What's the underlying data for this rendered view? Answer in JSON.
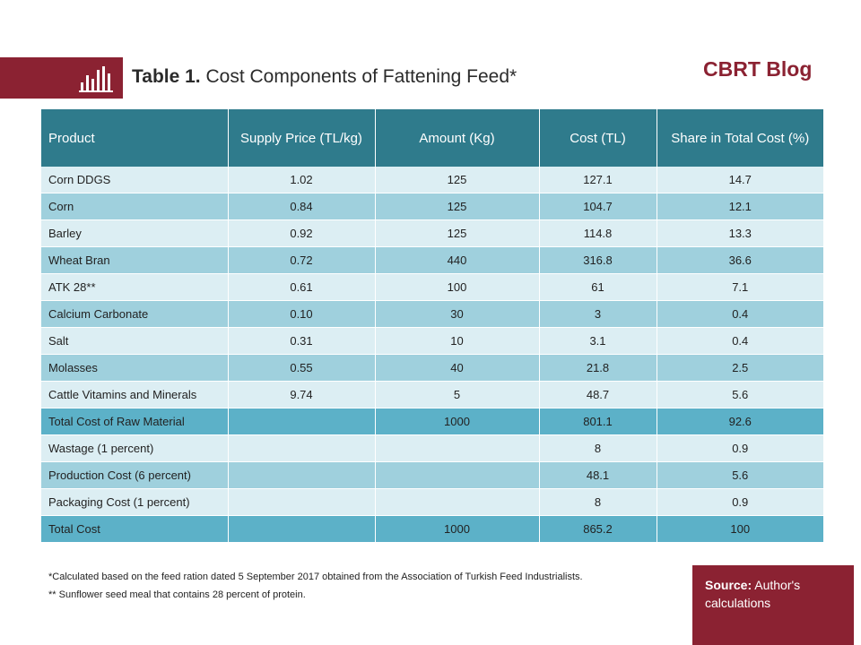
{
  "header": {
    "title_bold": "Table 1.",
    "title_rest": "Cost Components of Fattening Feed*",
    "brand": "CBRT Blog",
    "icon": "bar-chart-icon"
  },
  "table": {
    "columns": [
      "Product",
      "Supply Price (TL/kg)",
      "Amount (Kg)",
      "Cost (TL)",
      "Share in Total Cost (%)"
    ],
    "rows": [
      {
        "cells": [
          "Corn DDGS",
          "1.02",
          "125",
          "127.1",
          "14.7"
        ],
        "kind": "odd"
      },
      {
        "cells": [
          "Corn",
          "0.84",
          "125",
          "104.7",
          "12.1"
        ],
        "kind": "even"
      },
      {
        "cells": [
          "Barley",
          "0.92",
          "125",
          "114.8",
          "13.3"
        ],
        "kind": "odd"
      },
      {
        "cells": [
          "Wheat Bran",
          "0.72",
          "440",
          "316.8",
          "36.6"
        ],
        "kind": "even"
      },
      {
        "cells": [
          "ATK 28**",
          "0.61",
          "100",
          "61",
          "7.1"
        ],
        "kind": "odd"
      },
      {
        "cells": [
          "Calcium Carbonate",
          "0.10",
          "30",
          "3",
          "0.4"
        ],
        "kind": "even"
      },
      {
        "cells": [
          "Salt",
          "0.31",
          "10",
          "3.1",
          "0.4"
        ],
        "kind": "odd"
      },
      {
        "cells": [
          "Molasses",
          "0.55",
          "40",
          "21.8",
          "2.5"
        ],
        "kind": "even"
      },
      {
        "cells": [
          "Cattle Vitamins and Minerals",
          "9.74",
          "5",
          "48.7",
          "5.6"
        ],
        "kind": "odd"
      },
      {
        "cells": [
          "Total Cost of Raw Material",
          "",
          "1000",
          "801.1",
          "92.6"
        ],
        "kind": "total"
      },
      {
        "cells": [
          "Wastage (1 percent)",
          "",
          "",
          "8",
          "0.9"
        ],
        "kind": "odd"
      },
      {
        "cells": [
          "Production Cost (6 percent)",
          "",
          "",
          "48.1",
          "5.6"
        ],
        "kind": "even"
      },
      {
        "cells": [
          "Packaging Cost (1 percent)",
          "",
          "",
          "8",
          "0.9"
        ],
        "kind": "odd"
      },
      {
        "cells": [
          "Total Cost",
          "",
          "1000",
          "865.2",
          "100"
        ],
        "kind": "total"
      }
    ]
  },
  "notes": {
    "note1": "*Calculated based on the feed ration dated 5 September 2017 obtained from the Association of Turkish Feed Industrialists.",
    "note2": "** Sunflower seed meal that contains 28 percent of protein."
  },
  "source": {
    "label": "Source:",
    "text": "Author's calculations"
  },
  "colors": {
    "accent": "#8b2232",
    "header": "#2f7b8c",
    "row_light": "#dceef3",
    "row_mid": "#9fd0dd",
    "row_total": "#5cb1c8"
  }
}
